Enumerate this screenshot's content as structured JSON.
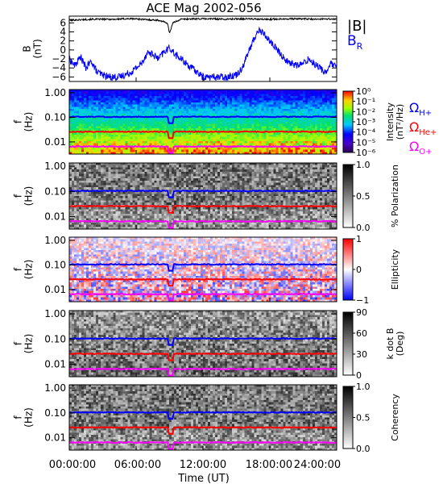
{
  "title": "ACE Mag 2002-056",
  "chart_data": [
    {
      "type": "line",
      "ylabel": "B\n(nT)",
      "yticks": [
        "6",
        "4",
        "2",
        "0",
        "−2",
        "−4",
        "−6"
      ],
      "ytick_values": [
        6,
        4,
        2,
        0,
        -2,
        -4,
        -6
      ],
      "ylim": [
        -7,
        7.5
      ],
      "xlim_hours": [
        0,
        24
      ],
      "legend": [
        {
          "label": "|B|",
          "color": "#000000"
        },
        {
          "label": "B",
          "sub": "R",
          "color": "#0000ff"
        }
      ],
      "series": [
        {
          "name": "|B|",
          "color": "#000000",
          "x": [
            0,
            1,
            2,
            3,
            4,
            5,
            6,
            7,
            8,
            8.8,
            9.0,
            9.3,
            10,
            11,
            12,
            13,
            14,
            15,
            16,
            17,
            18,
            19,
            20,
            21,
            22,
            23,
            24
          ],
          "y": [
            6.6,
            6.7,
            6.8,
            6.8,
            6.8,
            6.9,
            6.9,
            6.7,
            6.6,
            6.0,
            3.8,
            6.0,
            6.8,
            6.9,
            6.9,
            6.9,
            6.8,
            6.9,
            6.9,
            6.8,
            6.8,
            6.9,
            6.9,
            6.9,
            6.8,
            6.9,
            6.8
          ]
        },
        {
          "name": "B_R",
          "color": "#0000ff",
          "x": [
            0,
            0.5,
            1,
            1.5,
            2,
            2.5,
            3,
            3.5,
            4,
            4.5,
            5,
            5.5,
            6,
            6.5,
            7,
            7.5,
            8,
            8.5,
            9,
            9.5,
            10,
            11,
            12,
            13,
            14,
            15,
            15.5,
            16,
            16.5,
            17,
            17.5,
            18,
            18.5,
            19,
            19.5,
            20,
            20.5,
            21,
            21.5,
            22,
            22.5,
            23,
            23.5,
            24
          ],
          "y": [
            -2,
            -3.5,
            -1.5,
            -4,
            -2.5,
            -5,
            -5.5,
            -6,
            -6,
            -6,
            -5.5,
            -5,
            -4,
            -3,
            -0.5,
            -1,
            -2,
            -0.5,
            0.5,
            -1,
            -2,
            -4,
            -6,
            -6,
            -6,
            -5.5,
            -4,
            -1,
            2,
            4.5,
            3.5,
            2,
            0.5,
            -1,
            -2.5,
            -3,
            -3.5,
            -3,
            -2,
            -3,
            -4,
            -5,
            -3,
            -4
          ]
        }
      ]
    },
    {
      "type": "heatmap",
      "quantity": "power spectral density",
      "ylabel": "f\n(Hz)",
      "yticks": [
        "1.00",
        "0.10",
        "0.01"
      ],
      "ytick_values": [
        1.0,
        0.1,
        0.01
      ],
      "colorbar_label": "Intensity\n(nT²/Hz)",
      "colorbar_ticks": [
        "10⁰",
        "10⁻¹",
        "10⁻²",
        "10⁻³",
        "10⁻⁴",
        "10⁻⁵",
        "10⁻⁶"
      ],
      "colorscale": "rainbow",
      "legend": [
        {
          "label": "Ω",
          "sub": "H+",
          "color": "#0000ff"
        },
        {
          "label": "Ω",
          "sub": "He+",
          "color": "#ff0000"
        },
        {
          "label": "Ω",
          "sub": "O+",
          "color": "#ff00ff"
        }
      ]
    },
    {
      "type": "heatmap",
      "quantity": "polarization",
      "ylabel": "f\n(Hz)",
      "yticks": [
        "1.00",
        "0.10",
        "0.01"
      ],
      "ytick_values": [
        1.0,
        0.1,
        0.01
      ],
      "colorbar_label": "% Polarization",
      "colorbar_ticks": [
        "1.0",
        "0.5",
        "0.0"
      ],
      "colorscale": "gray"
    },
    {
      "type": "heatmap",
      "quantity": "ellipticity",
      "ylabel": "f\n(Hz)",
      "yticks": [
        "1.00",
        "0.10",
        "0.01"
      ],
      "ytick_values": [
        1.0,
        0.1,
        0.01
      ],
      "colorbar_label": "Ellipticity",
      "colorbar_ticks": [
        "1",
        "0",
        "−1"
      ],
      "colorscale": "blue-white-red"
    },
    {
      "type": "heatmap",
      "quantity": "k dot B angle",
      "ylabel": "f\n(Hz)",
      "yticks": [
        "1.00",
        "0.10",
        "0.01"
      ],
      "ytick_values": [
        1.0,
        0.1,
        0.01
      ],
      "colorbar_label": "k dot B\n(Deg)",
      "colorbar_ticks": [
        "90",
        "60",
        "30",
        "0"
      ],
      "colorscale": "gray"
    },
    {
      "type": "heatmap",
      "quantity": "coherency",
      "ylabel": "f\n(Hz)",
      "yticks": [
        "1.00",
        "0.10",
        "0.01"
      ],
      "ytick_values": [
        1.0,
        0.1,
        0.01
      ],
      "colorbar_label": "Coherency",
      "colorbar_ticks": [
        "1.0",
        "0.5",
        "0.0"
      ],
      "colorscale": "gray"
    }
  ],
  "gyrofrequency_lines": {
    "note_freqs_hz": {
      "H+": 0.105,
      "He+": 0.026,
      "O+": 0.0065
    },
    "colors": {
      "H+": "#0000ff",
      "He+": "#ff0000",
      "O+": "#ff00ff"
    }
  },
  "xaxis": {
    "ticks": [
      "00:00:00",
      "06:00:00",
      "12:00:00",
      "18:00:00",
      "24:00:00"
    ],
    "tick_hours": [
      0,
      6,
      12,
      18,
      24
    ],
    "label": "Time (UT)"
  }
}
